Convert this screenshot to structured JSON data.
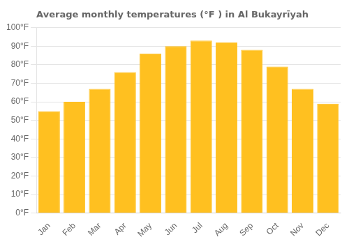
{
  "chart_data": {
    "type": "bar",
    "title": "Average monthly temperatures (°F ) in Al Bukayrīyah",
    "categories": [
      "Jan",
      "Feb",
      "Mar",
      "Apr",
      "May",
      "Jun",
      "Jul",
      "Aug",
      "Sep",
      "Oct",
      "Nov",
      "Dec"
    ],
    "values": [
      55,
      60,
      67,
      76,
      86,
      90,
      93,
      92,
      88,
      79,
      67,
      59
    ],
    "color": "#FFC020",
    "ylim": [
      0,
      100
    ],
    "yticks": [
      {
        "value": 0,
        "label": "0°F"
      },
      {
        "value": 10,
        "label": "10°F"
      },
      {
        "value": 20,
        "label": "20°F"
      },
      {
        "value": 30,
        "label": "30°F"
      },
      {
        "value": 40,
        "label": "40°F"
      },
      {
        "value": 50,
        "label": "50°F"
      },
      {
        "value": 60,
        "label": "60°F"
      },
      {
        "value": 70,
        "label": "70°F"
      },
      {
        "value": 80,
        "label": "80°F"
      },
      {
        "value": 90,
        "label": "90°F"
      },
      {
        "value": 100,
        "label": "100°F"
      }
    ],
    "grid": true
  }
}
